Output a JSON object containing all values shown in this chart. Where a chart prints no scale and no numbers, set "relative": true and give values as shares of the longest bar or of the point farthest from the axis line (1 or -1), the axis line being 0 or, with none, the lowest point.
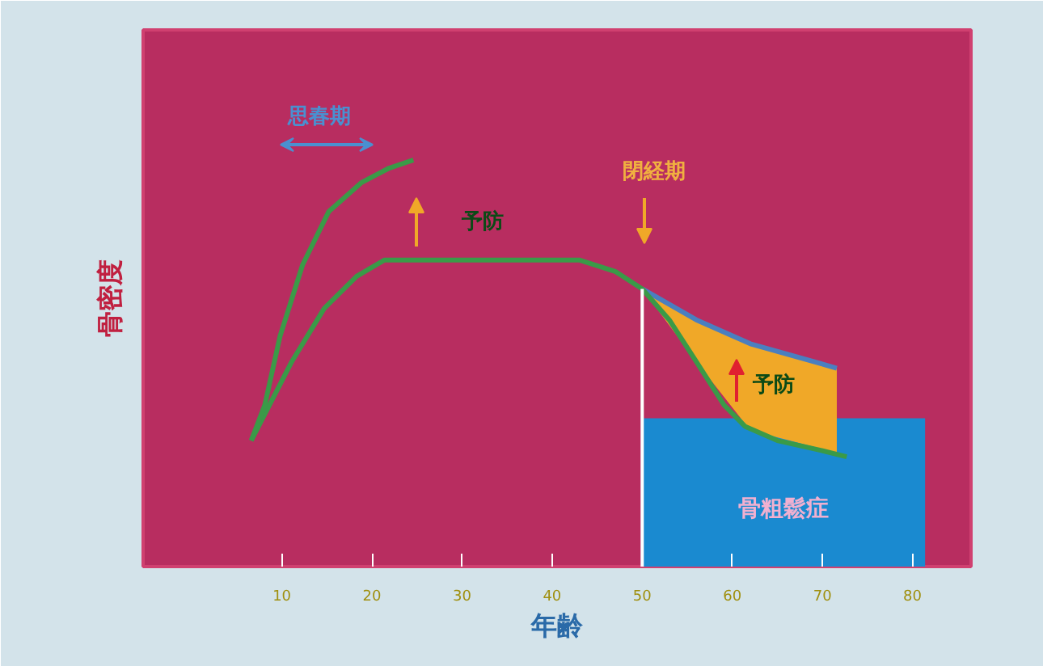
{
  "chart_data": {
    "type": "line",
    "relative": true,
    "xlabel": "年齢",
    "ylabel": "骨密度",
    "xlim": [
      -5.4,
      86.5
    ],
    "xticks": [
      10,
      20,
      30,
      40,
      50,
      60,
      70,
      80
    ],
    "grid": false,
    "ref_lines": [
      {
        "axis": "x",
        "value": 50,
        "color": "#ffffff"
      }
    ],
    "annotations": [
      "思春期",
      "閉経期",
      "予防",
      "予防"
    ],
    "series": [
      {
        "type": "area",
        "name": "骨粗鬆症",
        "color": "#1a8ad0",
        "x": [
          50,
          81.4
        ],
        "values": [
          0.365,
          0.365
        ]
      },
      {
        "color": "#4a7fc0",
        "x": [
          50,
          56,
          62,
          71.6
        ],
        "values": [
          0.683,
          0.607,
          0.548,
          0.488
        ],
        "lower": [
          0.683,
          0.504,
          0.335,
          0.28
        ],
        "upper": [
          0.683,
          0.607,
          0.548,
          0.488
        ]
      },
      {
        "color": "#3a9a48",
        "x": [
          6.6,
          11.1,
          14.7,
          18.3,
          21.4,
          43,
          47,
          50,
          53,
          56,
          59.1,
          61.4,
          65,
          69.8,
          72.7
        ],
        "values": [
          0.31,
          0.504,
          0.635,
          0.714,
          0.754,
          0.754,
          0.726,
          0.683,
          0.607,
          0.504,
          0.397,
          0.345,
          0.31,
          0.286,
          0.27
        ]
      },
      {
        "color": "#3a9a48",
        "x": [
          6.6,
          8.1,
          9.8,
          12.3,
          15.2,
          18.8,
          21.9,
          24.6
        ],
        "values": [
          0.31,
          0.397,
          0.567,
          0.742,
          0.873,
          0.944,
          0.98,
          1
        ]
      }
    ]
  }
}
